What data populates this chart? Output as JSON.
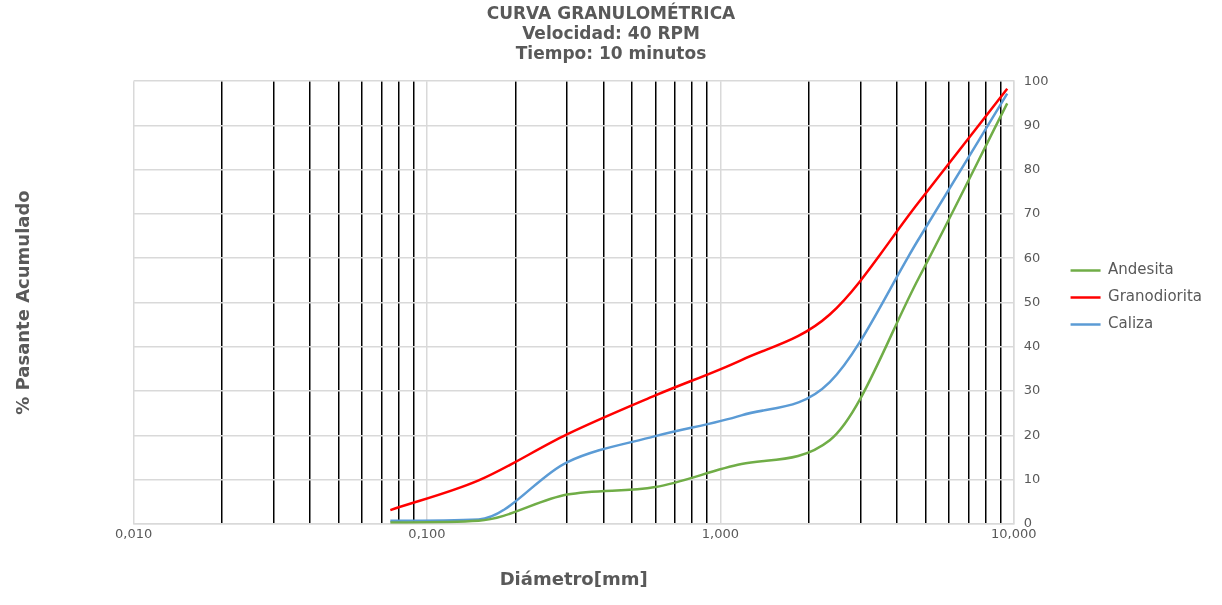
{
  "chart_data": {
    "type": "line",
    "title": "CURVA GRANULOMÉTRICA",
    "subtitle": "Velocidad: 40 RPM\nTiempo: 10 minutos",
    "xlabel": "Diámetro[mm]",
    "ylabel": "% Pasante Acumulado",
    "x": [
      0.075,
      0.15,
      0.3,
      0.6,
      1.18,
      2.36,
      4.75,
      9.5
    ],
    "series": [
      {
        "name": "Andesita",
        "color": "#70ad47",
        "values": [
          0.3,
          0.7,
          6.6,
          8.3,
          13.5,
          18.9,
          55.6,
          95
        ]
      },
      {
        "name": "Granodiorita",
        "color": "#ff0000",
        "values": [
          3.1,
          9.8,
          20.2,
          29,
          37,
          47.3,
          72.7,
          98.3
        ]
      },
      {
        "name": "Caliza",
        "color": "#5b9bd5",
        "values": [
          0.7,
          1,
          13.9,
          19.8,
          24.5,
          32,
          64.4,
          97.2
        ]
      }
    ],
    "log": "x",
    "xlim": [
      0.01,
      10
    ],
    "xticks": [
      {
        "value": 0.01,
        "label": "0,010"
      },
      {
        "value": 0.02,
        "label": null
      },
      {
        "value": 0.03,
        "label": null
      },
      {
        "value": 0.04,
        "label": null
      },
      {
        "value": 0.05,
        "label": null
      },
      {
        "value": 0.06,
        "label": null
      },
      {
        "value": 0.07,
        "label": null
      },
      {
        "value": 0.08,
        "label": null
      },
      {
        "value": 0.09,
        "label": null
      },
      {
        "value": 0.1,
        "label": "0,100"
      },
      {
        "value": 0.2,
        "label": null
      },
      {
        "value": 0.3,
        "label": null
      },
      {
        "value": 0.4,
        "label": null
      },
      {
        "value": 0.5,
        "label": null
      },
      {
        "value": 0.6,
        "label": null
      },
      {
        "value": 0.7,
        "label": null
      },
      {
        "value": 0.8,
        "label": null
      },
      {
        "value": 0.9,
        "label": null
      },
      {
        "value": 1,
        "label": "1,000"
      },
      {
        "value": 2,
        "label": null
      },
      {
        "value": 3,
        "label": null
      },
      {
        "value": 4,
        "label": null
      },
      {
        "value": 5,
        "label": null
      },
      {
        "value": 6,
        "label": null
      },
      {
        "value": 7,
        "label": null
      },
      {
        "value": 8,
        "label": null
      },
      {
        "value": 9,
        "label": null
      },
      {
        "value": 10,
        "label": "10,000"
      }
    ],
    "ylim": [
      0,
      100
    ],
    "yticks": [
      0,
      10,
      20,
      30,
      40,
      50,
      60,
      70,
      80,
      90,
      100
    ],
    "grid": true,
    "legend": "right",
    "marker": "none",
    "line_style": "solid"
  }
}
